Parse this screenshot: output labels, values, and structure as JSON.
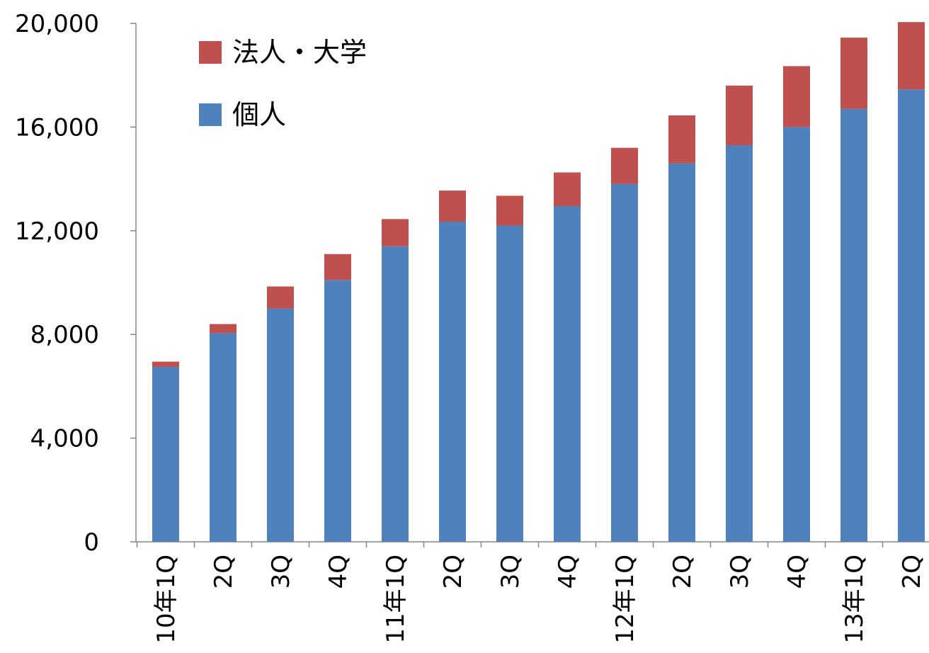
{
  "chart_data": {
    "type": "bar",
    "stacked": true,
    "categories": [
      "10年1Q",
      "2Q",
      "3Q",
      "4Q",
      "11年1Q",
      "2Q",
      "3Q",
      "4Q",
      "12年1Q",
      "2Q",
      "3Q",
      "4Q",
      "13年1Q",
      "2Q"
    ],
    "series": [
      {
        "name": "個人",
        "color": "#4F81BD",
        "values": [
          6750,
          8050,
          9000,
          10100,
          11400,
          12350,
          12200,
          12950,
          13800,
          14600,
          15300,
          16000,
          16700,
          17450
        ]
      },
      {
        "name": "法人・大学",
        "color": "#C0504D",
        "values": [
          200,
          350,
          850,
          1000,
          1050,
          1200,
          1150,
          1300,
          1400,
          1850,
          2300,
          2350,
          2750,
          2600
        ]
      }
    ],
    "yticks": [
      "0",
      "4,000",
      "8,000",
      "12,000",
      "16,000",
      "20,000"
    ],
    "ylim": [
      0,
      20000
    ],
    "legend": {
      "position": "top-left",
      "items": [
        "法人・大学",
        "個人"
      ]
    },
    "grid": false
  }
}
